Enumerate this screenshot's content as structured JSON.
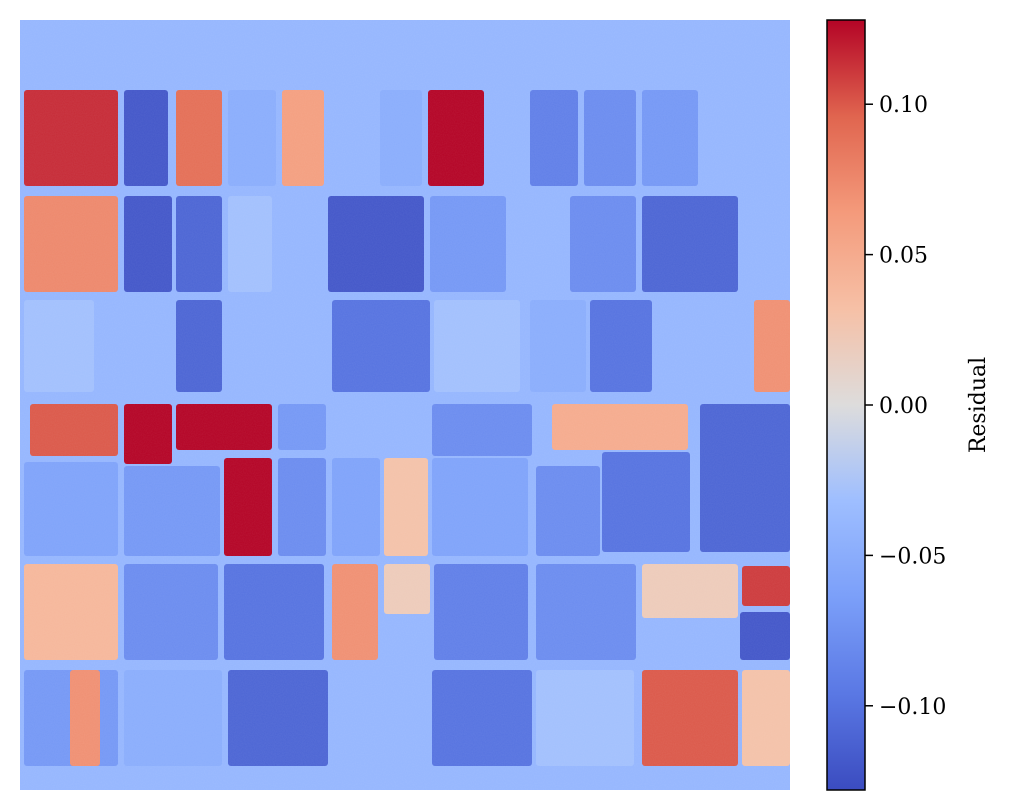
{
  "chart_data": {
    "type": "heatmap",
    "title": "",
    "colormap": "coolwarm",
    "colorbar": {
      "label": "Residual",
      "vmin": -0.128,
      "vmax": 0.128,
      "ticks": [
        0.1,
        0.05,
        0.0,
        -0.05,
        -0.1
      ],
      "tick_labels": [
        "0.10",
        "0.05",
        "0.00",
        "−0.05",
        "−0.10"
      ]
    },
    "axes_visible": false,
    "grid": false,
    "background_value": -0.04,
    "fields": [
      {
        "row": 1,
        "col": 1,
        "value": 0.115,
        "note": ""
      },
      {
        "row": 1,
        "col": 2,
        "value": -0.12,
        "note": ""
      },
      {
        "row": 1,
        "col": 3,
        "value": 0.09,
        "note": ""
      },
      {
        "row": 1,
        "col": 4,
        "value": -0.05,
        "note": ""
      },
      {
        "row": 1,
        "col": 5,
        "value": 0.06,
        "note": ""
      },
      {
        "row": 1,
        "col": 6,
        "value": -0.04,
        "note": ""
      },
      {
        "row": 1,
        "col": 7,
        "value": -0.05,
        "note": ""
      },
      {
        "row": 1,
        "col": 8,
        "value": 0.128,
        "note": ""
      },
      {
        "row": 1,
        "col": 9,
        "value": -0.09,
        "note": ""
      },
      {
        "row": 1,
        "col": 10,
        "value": -0.08,
        "note": ""
      },
      {
        "row": 1,
        "col": 11,
        "value": -0.07,
        "note": ""
      },
      {
        "row": 2,
        "col": 1,
        "value": 0.075,
        "note": ""
      },
      {
        "row": 2,
        "col": 2,
        "value": -0.12,
        "note": ""
      },
      {
        "row": 2,
        "col": 3,
        "value": -0.11,
        "note": ""
      },
      {
        "row": 2,
        "col": 4,
        "value": -0.03,
        "note": ""
      },
      {
        "row": 2,
        "col": 5,
        "value": -0.04,
        "note": ""
      },
      {
        "row": 2,
        "col": 6,
        "value": -0.12,
        "note": ""
      },
      {
        "row": 2,
        "col": 7,
        "value": -0.07,
        "note": ""
      },
      {
        "row": 2,
        "col": 8,
        "value": -0.08,
        "note": ""
      },
      {
        "row": 2,
        "col": 9,
        "value": -0.11,
        "note": ""
      },
      {
        "row": 3,
        "col": 1,
        "value": -0.03,
        "note": ""
      },
      {
        "row": 3,
        "col": 2,
        "value": -0.04,
        "note": ""
      },
      {
        "row": 3,
        "col": 3,
        "value": -0.11,
        "note": ""
      },
      {
        "row": 3,
        "col": 4,
        "value": -0.04,
        "note": ""
      },
      {
        "row": 3,
        "col": 5,
        "value": -0.1,
        "note": ""
      },
      {
        "row": 3,
        "col": 6,
        "value": -0.03,
        "note": ""
      },
      {
        "row": 3,
        "col": 7,
        "value": -0.05,
        "note": ""
      },
      {
        "row": 3,
        "col": 8,
        "value": -0.1,
        "note": ""
      },
      {
        "row": 3,
        "col": 9,
        "value": 0.07,
        "note": ""
      },
      {
        "row": 4,
        "col": 1,
        "value": 0.1,
        "note": ""
      },
      {
        "row": 4,
        "col": 2,
        "value": 0.128,
        "note": ""
      },
      {
        "row": 4,
        "col": 3,
        "value": 0.128,
        "note": ""
      },
      {
        "row": 4,
        "col": 4,
        "value": -0.07,
        "note": ""
      },
      {
        "row": 4,
        "col": 5,
        "value": -0.04,
        "note": ""
      },
      {
        "row": 4,
        "col": 6,
        "value": -0.08,
        "note": ""
      },
      {
        "row": 4,
        "col": 7,
        "value": 0.05,
        "note": ""
      },
      {
        "row": 4,
        "col": 8,
        "value": -0.1,
        "note": ""
      },
      {
        "row": 4,
        "col": 9,
        "value": -0.11,
        "note": ""
      },
      {
        "row": 5,
        "col": 1,
        "value": -0.06,
        "note": ""
      },
      {
        "row": 5,
        "col": 2,
        "value": -0.07,
        "note": ""
      },
      {
        "row": 5,
        "col": 3,
        "value": 0.128,
        "note": ""
      },
      {
        "row": 5,
        "col": 4,
        "value": -0.08,
        "note": ""
      },
      {
        "row": 5,
        "col": 5,
        "value": -0.06,
        "note": ""
      },
      {
        "row": 5,
        "col": 6,
        "value": 0.03,
        "note": ""
      },
      {
        "row": 5,
        "col": 7,
        "value": -0.06,
        "note": ""
      },
      {
        "row": 5,
        "col": 8,
        "value": -0.08,
        "note": ""
      },
      {
        "row": 6,
        "col": 1,
        "value": 0.04,
        "note": ""
      },
      {
        "row": 6,
        "col": 2,
        "value": -0.08,
        "note": ""
      },
      {
        "row": 6,
        "col": 3,
        "value": -0.1,
        "note": ""
      },
      {
        "row": 6,
        "col": 4,
        "value": 0.07,
        "note": ""
      },
      {
        "row": 6,
        "col": 5,
        "value": 0.02,
        "note": ""
      },
      {
        "row": 6,
        "col": 6,
        "value": -0.09,
        "note": ""
      },
      {
        "row": 6,
        "col": 7,
        "value": -0.08,
        "note": ""
      },
      {
        "row": 6,
        "col": 8,
        "value": 0.02,
        "note": ""
      },
      {
        "row": 6,
        "col": 9,
        "value": 0.11,
        "note": ""
      },
      {
        "row": 6,
        "col": 10,
        "value": -0.12,
        "note": ""
      },
      {
        "row": 7,
        "col": 1,
        "value": -0.07,
        "note": ""
      },
      {
        "row": 7,
        "col": 2,
        "value": 0.07,
        "note": ""
      },
      {
        "row": 7,
        "col": 3,
        "value": -0.05,
        "note": ""
      },
      {
        "row": 7,
        "col": 4,
        "value": -0.11,
        "note": ""
      },
      {
        "row": 7,
        "col": 5,
        "value": -0.04,
        "note": ""
      },
      {
        "row": 7,
        "col": 6,
        "value": -0.1,
        "note": ""
      },
      {
        "row": 7,
        "col": 7,
        "value": -0.03,
        "note": ""
      },
      {
        "row": 7,
        "col": 8,
        "value": 0.1,
        "note": ""
      },
      {
        "row": 7,
        "col": 9,
        "value": 0.03,
        "note": ""
      }
    ]
  }
}
